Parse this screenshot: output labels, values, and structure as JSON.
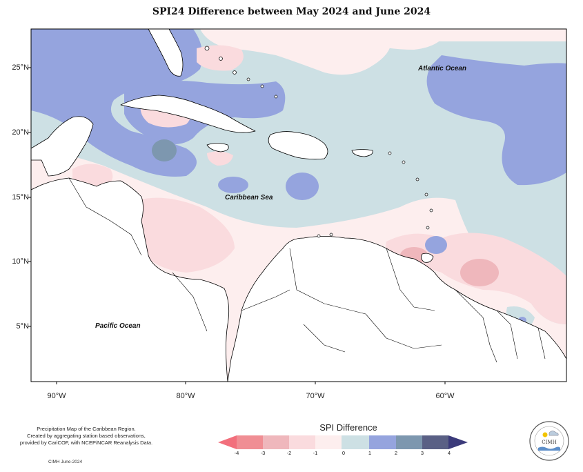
{
  "title": "SPI24 Difference between May 2024 and June 2024",
  "map": {
    "lat_ticks": [
      "25°N",
      "20°N",
      "15°N",
      "10°N",
      "5°N"
    ],
    "lon_ticks": [
      "90°W",
      "80°W",
      "70°W",
      "60°W"
    ],
    "labels": {
      "atlantic": "Atlantic Ocean",
      "caribbean": "Caribbean Sea",
      "pacific": "Pacific Ocean"
    }
  },
  "legend": {
    "title": "SPI Difference",
    "ticks": [
      "-4",
      "-3",
      "-2",
      "-1",
      "0",
      "1",
      "2",
      "3",
      "4"
    ],
    "colors": [
      "#f08e94",
      "#efb7bc",
      "#fadbde",
      "#fdeeee",
      "#cde0e4",
      "#95a4de",
      "#7d97af",
      "#5a6085"
    ],
    "arrow_left_color": "#f26f7c",
    "arrow_right_color": "#3b3a7a"
  },
  "caption": {
    "lines": [
      "Precipitation Map of the Caribbean Region.",
      "Created by aggregating station based observations,",
      "provided by CariCOF, with NCEP/NCAR Reanalysis Data."
    ],
    "credit": "CIMH June-2024"
  },
  "logo": {
    "name": "CIMH"
  }
}
